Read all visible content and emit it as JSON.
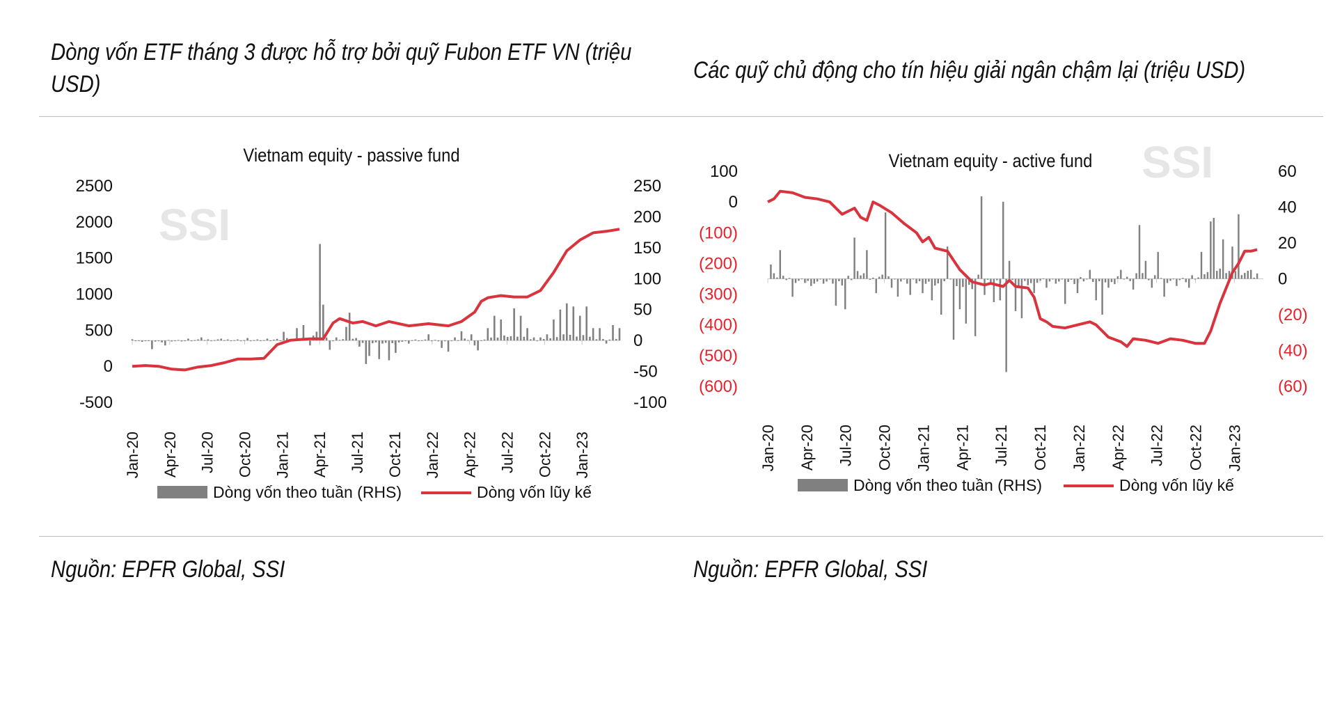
{
  "left": {
    "heading": "Dòng vốn ETF tháng 3 được hỗ trợ bởi quỹ Fubon ETF VN (triệu USD)",
    "heading_line1": "Dòng vốn ETF tháng 3 được hỗ trợ bởi quỹ Fubon ETF VN (triệu",
    "heading_line2": "USD)",
    "source": "Nguồn: EPFR Global, SSI"
  },
  "right": {
    "heading": "Các quỹ chủ động cho tín hiệu giải ngân chậm lại (triệu USD)",
    "source": "Nguồn: EPFR Global, SSI"
  },
  "colors": {
    "bars": "#808080",
    "line": "#d9343d",
    "neg_axis": "#e8202a",
    "watermark": "#e6e6e6"
  },
  "chart_data": [
    {
      "type": "bar+line",
      "title": "Vietnam equity - passive fund",
      "watermark": "SSI",
      "x_ticks": [
        "Jan-20",
        "Apr-20",
        "Jul-20",
        "Oct-20",
        "Jan-21",
        "Apr-21",
        "Jul-21",
        "Oct-21",
        "Jan-22",
        "Apr-22",
        "Jul-22",
        "Oct-22",
        "Jan-23"
      ],
      "y_left": {
        "range": [
          -500,
          2500
        ],
        "ticks": [
          2500,
          2000,
          1500,
          1000,
          500,
          0,
          -500
        ],
        "labels": [
          "2500",
          "2000",
          "1500",
          "1000",
          "500",
          "0",
          "-500"
        ]
      },
      "y_right": {
        "range": [
          -100,
          250
        ],
        "ticks": [
          250,
          200,
          150,
          100,
          50,
          0,
          -50,
          -100
        ],
        "labels": [
          "250",
          "200",
          "150",
          "100",
          "50",
          "0",
          "-50",
          "-100"
        ]
      },
      "series": [
        {
          "name": "Dòng vốn theo tuần (RHS)",
          "kind": "bar",
          "axis": "right",
          "points": [
            [
              0,
              2
            ],
            [
              6,
              -14
            ],
            [
              10,
              -8
            ],
            [
              17,
              3
            ],
            [
              21,
              5
            ],
            [
              27,
              3
            ],
            [
              35,
              4
            ],
            [
              41,
              3
            ],
            [
              46,
              14
            ],
            [
              50,
              20
            ],
            [
              52,
              25
            ],
            [
              54,
              -8
            ],
            [
              55,
              8
            ],
            [
              57,
              156
            ],
            [
              58,
              58
            ],
            [
              60,
              -15
            ],
            [
              62,
              5
            ],
            [
              65,
              22
            ],
            [
              66,
              45
            ],
            [
              69,
              -10
            ],
            [
              71,
              -38
            ],
            [
              72,
              -25
            ],
            [
              75,
              -30
            ],
            [
              78,
              -32
            ],
            [
              80,
              -20
            ],
            [
              84,
              -5
            ],
            [
              90,
              10
            ],
            [
              94,
              -12
            ],
            [
              96,
              -18
            ],
            [
              98,
              5
            ],
            [
              100,
              15
            ],
            [
              103,
              10
            ],
            [
              104,
              -8
            ],
            [
              105,
              -16
            ],
            [
              108,
              20
            ],
            [
              110,
              40
            ],
            [
              112,
              34
            ],
            [
              116,
              52
            ],
            [
              118,
              40
            ],
            [
              120,
              20
            ],
            [
              122,
              5
            ],
            [
              124,
              5
            ],
            [
              126,
              10
            ],
            [
              128,
              34
            ],
            [
              130,
              50
            ],
            [
              132,
              60
            ],
            [
              134,
              55
            ],
            [
              136,
              40
            ],
            [
              138,
              55
            ],
            [
              140,
              20
            ],
            [
              142,
              20
            ],
            [
              144,
              -5
            ],
            [
              146,
              25
            ],
            [
              148,
              20
            ]
          ]
        },
        {
          "name": "Dòng vốn lũy kế",
          "kind": "line",
          "axis": "left",
          "points": [
            [
              0,
              0
            ],
            [
              4,
              10
            ],
            [
              8,
              0
            ],
            [
              12,
              -40
            ],
            [
              16,
              -50
            ],
            [
              20,
              -10
            ],
            [
              24,
              10
            ],
            [
              28,
              50
            ],
            [
              32,
              100
            ],
            [
              36,
              100
            ],
            [
              40,
              110
            ],
            [
              44,
              300
            ],
            [
              48,
              360
            ],
            [
              54,
              380
            ],
            [
              58,
              380
            ],
            [
              61,
              600
            ],
            [
              63,
              660
            ],
            [
              65,
              630
            ],
            [
              67,
              600
            ],
            [
              70,
              620
            ],
            [
              74,
              560
            ],
            [
              78,
              620
            ],
            [
              84,
              560
            ],
            [
              90,
              590
            ],
            [
              96,
              560
            ],
            [
              100,
              620
            ],
            [
              104,
              750
            ],
            [
              106,
              900
            ],
            [
              108,
              950
            ],
            [
              112,
              980
            ],
            [
              116,
              960
            ],
            [
              120,
              960
            ],
            [
              124,
              1050
            ],
            [
              128,
              1300
            ],
            [
              132,
              1600
            ],
            [
              136,
              1750
            ],
            [
              140,
              1850
            ],
            [
              144,
              1870
            ],
            [
              148,
              1900
            ]
          ]
        }
      ]
    },
    {
      "type": "bar+line",
      "title": "Vietnam equity - active fund",
      "watermark": "SSI",
      "x_ticks": [
        "Jan-20",
        "Apr-20",
        "Jul-20",
        "Oct-20",
        "Jan-21",
        "Apr-21",
        "Jul-21",
        "Oct-21",
        "Jan-22",
        "Apr-22",
        "Jul-22",
        "Oct-22",
        "Jan-23"
      ],
      "y_left": {
        "range": [
          -600,
          100
        ],
        "ticks": [
          100,
          0,
          -100,
          -200,
          -300,
          -400,
          -500,
          -600
        ],
        "labels": [
          "100",
          "0",
          "(100)",
          "(200)",
          "(300)",
          "(400)",
          "(500)",
          "(600)"
        ]
      },
      "y_right": {
        "range": [
          -60,
          60
        ],
        "ticks": [
          60,
          40,
          20,
          0,
          -20,
          -40,
          -60
        ],
        "labels": [
          "60",
          "40",
          "20",
          "0",
          "(20)",
          "(40)",
          "(60)"
        ]
      },
      "series": [
        {
          "name": "Dòng vốn theo tuần (RHS)",
          "kind": "bar",
          "axis": "right",
          "points": [
            [
              1,
              8
            ],
            [
              4,
              16
            ],
            [
              8,
              -10
            ],
            [
              14,
              -4
            ],
            [
              22,
              -15
            ],
            [
              25,
              -17
            ],
            [
              28,
              23
            ],
            [
              32,
              16
            ],
            [
              35,
              -8
            ],
            [
              38,
              37
            ],
            [
              40,
              -5
            ],
            [
              42,
              -10
            ],
            [
              46,
              -9
            ],
            [
              50,
              -8
            ],
            [
              53,
              -12
            ],
            [
              56,
              -20
            ],
            [
              58,
              18
            ],
            [
              60,
              -34
            ],
            [
              62,
              -17
            ],
            [
              64,
              -25
            ],
            [
              67,
              -32
            ],
            [
              69,
              46
            ],
            [
              70,
              -9
            ],
            [
              73,
              -13
            ],
            [
              75,
              -12
            ],
            [
              76,
              43
            ],
            [
              77,
              -52
            ],
            [
              78,
              10
            ],
            [
              80,
              -18
            ],
            [
              82,
              -22
            ],
            [
              86,
              -8
            ],
            [
              90,
              -5
            ],
            [
              96,
              -14
            ],
            [
              100,
              -8
            ],
            [
              104,
              5
            ],
            [
              106,
              -12
            ],
            [
              108,
              -20
            ],
            [
              110,
              -5
            ],
            [
              112,
              -3
            ],
            [
              114,
              5
            ],
            [
              118,
              -6
            ],
            [
              120,
              30
            ],
            [
              122,
              10
            ],
            [
              124,
              -5
            ],
            [
              126,
              15
            ],
            [
              128,
              -10
            ],
            [
              132,
              -4
            ],
            [
              136,
              -5
            ],
            [
              140,
              15
            ],
            [
              143,
              32
            ],
            [
              144,
              34
            ],
            [
              147,
              22
            ],
            [
              150,
              18
            ],
            [
              152,
              36
            ],
            [
              156,
              5
            ],
            [
              158,
              3
            ]
          ]
        },
        {
          "name": "Dòng vốn lũy kế",
          "kind": "line",
          "axis": "left",
          "points": [
            [
              0,
              0
            ],
            [
              2,
              10
            ],
            [
              4,
              35
            ],
            [
              8,
              30
            ],
            [
              12,
              15
            ],
            [
              16,
              10
            ],
            [
              20,
              0
            ],
            [
              24,
              -40
            ],
            [
              28,
              -20
            ],
            [
              30,
              -50
            ],
            [
              32,
              -60
            ],
            [
              34,
              0
            ],
            [
              36,
              -10
            ],
            [
              40,
              -35
            ],
            [
              44,
              -70
            ],
            [
              48,
              -100
            ],
            [
              50,
              -130
            ],
            [
              52,
              -115
            ],
            [
              54,
              -150
            ],
            [
              58,
              -160
            ],
            [
              62,
              -220
            ],
            [
              66,
              -260
            ],
            [
              70,
              -270
            ],
            [
              72,
              -265
            ],
            [
              76,
              -275
            ],
            [
              78,
              -255
            ],
            [
              80,
              -275
            ],
            [
              84,
              -280
            ],
            [
              86,
              -310
            ],
            [
              88,
              -380
            ],
            [
              90,
              -390
            ],
            [
              92,
              -405
            ],
            [
              96,
              -410
            ],
            [
              100,
              -400
            ],
            [
              104,
              -390
            ],
            [
              106,
              -400
            ],
            [
              110,
              -440
            ],
            [
              114,
              -455
            ],
            [
              116,
              -470
            ],
            [
              118,
              -445
            ],
            [
              122,
              -450
            ],
            [
              126,
              -460
            ],
            [
              130,
              -445
            ],
            [
              134,
              -450
            ],
            [
              138,
              -460
            ],
            [
              141,
              -460
            ],
            [
              143,
              -420
            ],
            [
              146,
              -330
            ],
            [
              148,
              -280
            ],
            [
              150,
              -230
            ],
            [
              152,
              -200
            ],
            [
              154,
              -160
            ],
            [
              156,
              -160
            ],
            [
              158,
              -155
            ]
          ]
        }
      ]
    }
  ],
  "legend": {
    "bar_label": "Dòng vốn theo tuần (RHS)",
    "line_label": "Dòng vốn lũy kế"
  }
}
